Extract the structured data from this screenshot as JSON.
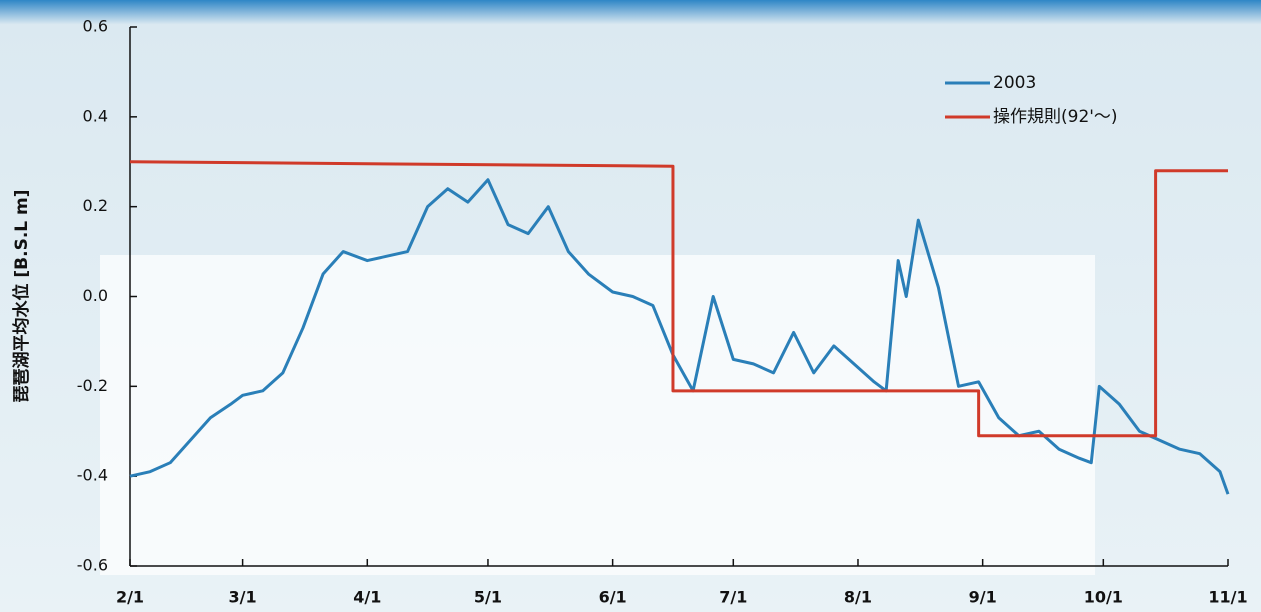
{
  "chart_data": {
    "type": "line",
    "ylabel": "琵琶湖平均水位 [B.S.L m]",
    "xlim": [
      "2/1",
      "11/1"
    ],
    "xticks": [
      "2/1",
      "3/1",
      "4/1",
      "5/1",
      "6/1",
      "7/1",
      "8/1",
      "9/1",
      "10/1",
      "11/1"
    ],
    "ylim": [
      -0.6,
      0.6
    ],
    "yticks": [
      0.6,
      0.4,
      0.2,
      {
        "value": 0,
        "label": "0.0"
      },
      -0.2,
      -0.4,
      -0.6
    ],
    "legend": "upper right",
    "series": [
      {
        "name": "2003",
        "color": "#2a7fb8",
        "x": [
          "2/1",
          "2/6",
          "2/11",
          "2/16",
          "2/21",
          "2/26",
          "3/1",
          "3/6",
          "3/11",
          "3/16",
          "3/21",
          "3/26",
          "4/1",
          "4/6",
          "4/11",
          "4/16",
          "4/21",
          "4/26",
          "5/1",
          "5/6",
          "5/11",
          "5/16",
          "5/21",
          "5/26",
          "6/1",
          "6/6",
          "6/11",
          "6/16",
          "6/21",
          "6/26",
          "7/1",
          "7/6",
          "7/11",
          "7/16",
          "7/21",
          "7/26",
          "7/31",
          "8/5",
          "8/8",
          "8/11",
          "8/13",
          "8/16",
          "8/21",
          "8/26",
          "8/31",
          "9/5",
          "9/10",
          "9/15",
          "9/20",
          "9/25",
          "9/28",
          "9/30",
          "10/5",
          "10/10",
          "10/15",
          "10/20",
          "10/25",
          "10/30",
          "11/1"
        ],
        "values": [
          -0.4,
          -0.39,
          -0.37,
          -0.32,
          -0.27,
          -0.24,
          -0.22,
          -0.21,
          -0.17,
          -0.07,
          0.05,
          0.1,
          0.08,
          0.09,
          0.1,
          0.2,
          0.24,
          0.21,
          0.26,
          0.16,
          0.14,
          0.2,
          0.1,
          0.05,
          0.01,
          0.0,
          -0.02,
          -0.13,
          -0.21,
          0.0,
          -0.14,
          -0.15,
          -0.17,
          -0.08,
          -0.17,
          -0.11,
          -0.15,
          -0.19,
          -0.21,
          0.08,
          0.0,
          0.17,
          0.02,
          -0.2,
          -0.19,
          -0.27,
          -0.31,
          -0.3,
          -0.34,
          -0.36,
          -0.37,
          -0.2,
          -0.24,
          -0.3,
          -0.32,
          -0.34,
          -0.35,
          -0.39,
          -0.44
        ]
      },
      {
        "name": "操作規則(92'〜)",
        "color": "#d03a2a",
        "x": [
          "2/1",
          "6/16",
          "6/16",
          "8/31",
          "8/31",
          "10/14",
          "10/14",
          "11/1"
        ],
        "values": [
          0.3,
          0.29,
          -0.21,
          -0.21,
          -0.31,
          -0.31,
          0.28,
          0.28
        ]
      }
    ]
  }
}
